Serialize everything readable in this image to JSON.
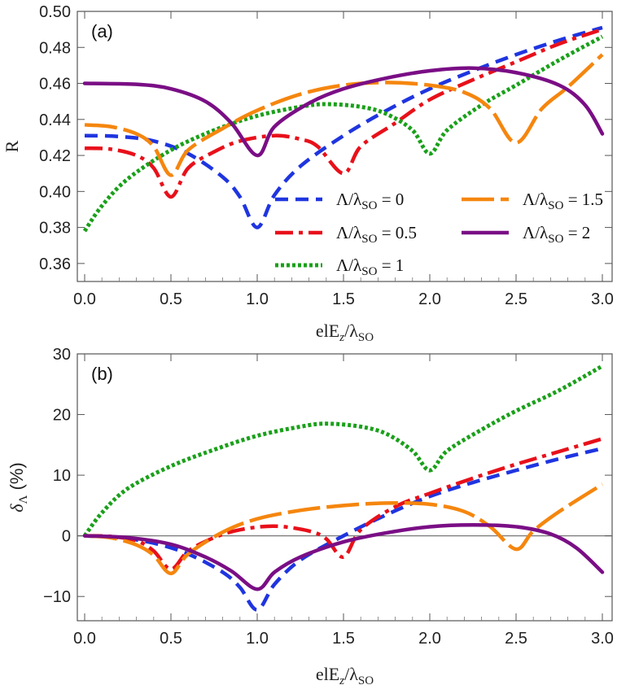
{
  "chart_data": [
    {
      "type": "line",
      "panel_label": "(a)",
      "xlabel": "elE",
      "xlabel_sub1": "z",
      "xlabel_mid": "/λ",
      "xlabel_sub2": "SO",
      "ylabel": "R",
      "xlim": [
        0,
        3
      ],
      "ylim": [
        0.35,
        0.5
      ],
      "xticks": [
        0.0,
        0.5,
        1.0,
        1.5,
        2.0,
        2.5,
        3.0
      ],
      "xtick_labels": [
        "0.0",
        "0.5",
        "1.0",
        "1.5",
        "2.0",
        "2.5",
        "3.0"
      ],
      "yticks": [
        0.36,
        0.38,
        0.4,
        0.42,
        0.44,
        0.46,
        0.48,
        0.5
      ],
      "ytick_labels": [
        "0.36",
        "0.38",
        "0.40",
        "0.42",
        "0.44",
        "0.46",
        "0.48",
        "0.50"
      ],
      "grid": false,
      "legend_position": "bottom-right",
      "series": [
        {
          "name": "Λ/λSO = 0",
          "label_main": "Λ/λ",
          "label_sub": "SO",
          "label_val": " = 0",
          "color": "#1f35e0",
          "dash": "16 9",
          "points": [
            [
              0.0,
              0.431
            ],
            [
              0.2,
              0.4305
            ],
            [
              0.4,
              0.428
            ],
            [
              0.6,
              0.421
            ],
            [
              0.8,
              0.408
            ],
            [
              0.9,
              0.397
            ],
            [
              1.0,
              0.38
            ],
            [
              1.1,
              0.398
            ],
            [
              1.25,
              0.414
            ],
            [
              1.5,
              0.431
            ],
            [
              1.75,
              0.445
            ],
            [
              2.0,
              0.457
            ],
            [
              2.25,
              0.467
            ],
            [
              2.5,
              0.476
            ],
            [
              2.75,
              0.484
            ],
            [
              3.0,
              0.491
            ]
          ]
        },
        {
          "name": "Λ/λSO = 0.5",
          "label_main": "Λ/λ",
          "label_sub": "SO",
          "label_val": " = 0.5",
          "color": "#e8101a",
          "dash": "22 7 5 7",
          "points": [
            [
              0.0,
              0.424
            ],
            [
              0.15,
              0.4235
            ],
            [
              0.3,
              0.42
            ],
            [
              0.4,
              0.413
            ],
            [
              0.5,
              0.397
            ],
            [
              0.6,
              0.413
            ],
            [
              0.75,
              0.422
            ],
            [
              0.9,
              0.428
            ],
            [
              1.1,
              0.431
            ],
            [
              1.25,
              0.429
            ],
            [
              1.35,
              0.425
            ],
            [
              1.5,
              0.41
            ],
            [
              1.6,
              0.425
            ],
            [
              1.8,
              0.438
            ],
            [
              2.0,
              0.451
            ],
            [
              2.25,
              0.462
            ],
            [
              2.5,
              0.472
            ],
            [
              2.75,
              0.482
            ],
            [
              3.0,
              0.49
            ]
          ]
        },
        {
          "name": "Λ/λSO = 1",
          "label_main": "Λ/λ",
          "label_sub": "SO",
          "label_val": " = 1",
          "color": "#1aa01a",
          "dash": "4 3",
          "points": [
            [
              0.0,
              0.378
            ],
            [
              0.1,
              0.392
            ],
            [
              0.25,
              0.407
            ],
            [
              0.5,
              0.423
            ],
            [
              0.75,
              0.434
            ],
            [
              1.0,
              0.442
            ],
            [
              1.25,
              0.447
            ],
            [
              1.4,
              0.4485
            ],
            [
              1.6,
              0.447
            ],
            [
              1.75,
              0.443
            ],
            [
              1.9,
              0.434
            ],
            [
              2.0,
              0.421
            ],
            [
              2.1,
              0.434
            ],
            [
              2.3,
              0.448
            ],
            [
              2.5,
              0.459
            ],
            [
              2.75,
              0.473
            ],
            [
              3.0,
              0.486
            ]
          ]
        },
        {
          "name": "Λ/λSO = 1.5",
          "label_main": "Λ/λ",
          "label_sub": "SO",
          "label_val": " = 1.5",
          "color": "#f5860e",
          "dash": "40 8",
          "points": [
            [
              0.0,
              0.437
            ],
            [
              0.15,
              0.436
            ],
            [
              0.3,
              0.432
            ],
            [
              0.4,
              0.425
            ],
            [
              0.5,
              0.409
            ],
            [
              0.6,
              0.423
            ],
            [
              0.8,
              0.435
            ],
            [
              1.0,
              0.445
            ],
            [
              1.25,
              0.454
            ],
            [
              1.5,
              0.459
            ],
            [
              1.75,
              0.4605
            ],
            [
              2.0,
              0.459
            ],
            [
              2.2,
              0.455
            ],
            [
              2.35,
              0.446
            ],
            [
              2.5,
              0.427
            ],
            [
              2.65,
              0.446
            ],
            [
              2.8,
              0.458
            ],
            [
              3.0,
              0.476
            ]
          ]
        },
        {
          "name": "Λ/λSO = 2",
          "label_main": "Λ/λ",
          "label_sub": "SO",
          "label_val": " = 2",
          "color": "#7a0e85",
          "dash": "",
          "points": [
            [
              0.0,
              0.46
            ],
            [
              0.3,
              0.4595
            ],
            [
              0.5,
              0.457
            ],
            [
              0.7,
              0.45
            ],
            [
              0.85,
              0.438
            ],
            [
              1.0,
              0.42
            ],
            [
              1.1,
              0.436
            ],
            [
              1.3,
              0.449
            ],
            [
              1.5,
              0.457
            ],
            [
              1.75,
              0.463
            ],
            [
              2.0,
              0.467
            ],
            [
              2.25,
              0.4685
            ],
            [
              2.5,
              0.466
            ],
            [
              2.75,
              0.459
            ],
            [
              2.9,
              0.448
            ],
            [
              3.0,
              0.432
            ]
          ]
        }
      ]
    },
    {
      "type": "line",
      "panel_label": "(b)",
      "xlabel": "elE",
      "xlabel_sub1": "z",
      "xlabel_mid": "/λ",
      "xlabel_sub2": "SO",
      "ylabel": "δ",
      "ylabel_sub": "Λ",
      "ylabel_rest": " (%)",
      "xlim": [
        0,
        3
      ],
      "ylim": [
        -14,
        30
      ],
      "xticks": [
        0.0,
        0.5,
        1.0,
        1.5,
        2.0,
        2.5,
        3.0
      ],
      "xtick_labels": [
        "0.0",
        "0.5",
        "1.0",
        "1.5",
        "2.0",
        "2.5",
        "3.0"
      ],
      "yticks": [
        -10,
        0,
        10,
        20,
        30
      ],
      "ytick_labels": [
        "−10",
        "0",
        "10",
        "20",
        "30"
      ],
      "zero_line": true,
      "grid": false,
      "series": [
        {
          "name": "Λ/λSO = 0",
          "color": "#1f35e0",
          "dash": "16 9",
          "points": [
            [
              0.0,
              0.0
            ],
            [
              0.2,
              -0.3
            ],
            [
              0.4,
              -1.2
            ],
            [
              0.6,
              -3.0
            ],
            [
              0.8,
              -6.0
            ],
            [
              0.9,
              -8.5
            ],
            [
              1.0,
              -12.2
            ],
            [
              1.1,
              -8.0
            ],
            [
              1.25,
              -4.0
            ],
            [
              1.5,
              0.0
            ],
            [
              1.75,
              3.5
            ],
            [
              2.0,
              6.5
            ],
            [
              2.25,
              8.8
            ],
            [
              2.5,
              10.8
            ],
            [
              2.75,
              12.7
            ],
            [
              3.0,
              14.4
            ]
          ]
        },
        {
          "name": "Λ/λSO = 0.5",
          "color": "#e8101a",
          "dash": "22 7 5 7",
          "points": [
            [
              0.0,
              0.0
            ],
            [
              0.15,
              -0.1
            ],
            [
              0.3,
              -0.8
            ],
            [
              0.4,
              -2.5
            ],
            [
              0.5,
              -5.5
            ],
            [
              0.6,
              -2.5
            ],
            [
              0.75,
              -0.3
            ],
            [
              0.9,
              1.0
            ],
            [
              1.1,
              1.6
            ],
            [
              1.3,
              0.8
            ],
            [
              1.4,
              -0.5
            ],
            [
              1.5,
              -3.5
            ],
            [
              1.6,
              1.0
            ],
            [
              1.8,
              4.8
            ],
            [
              2.0,
              7.0
            ],
            [
              2.25,
              9.5
            ],
            [
              2.5,
              11.8
            ],
            [
              2.75,
              13.9
            ],
            [
              3.0,
              16.0
            ]
          ]
        },
        {
          "name": "Λ/λSO = 1",
          "color": "#1aa01a",
          "dash": "4 3",
          "points": [
            [
              0.0,
              0.0
            ],
            [
              0.1,
              3.8
            ],
            [
              0.25,
              7.8
            ],
            [
              0.5,
              11.5
            ],
            [
              0.75,
              14.2
            ],
            [
              1.0,
              16.5
            ],
            [
              1.25,
              18.0
            ],
            [
              1.4,
              18.5
            ],
            [
              1.6,
              18.0
            ],
            [
              1.75,
              16.8
            ],
            [
              1.9,
              14.0
            ],
            [
              2.0,
              10.8
            ],
            [
              2.1,
              14.0
            ],
            [
              2.3,
              17.5
            ],
            [
              2.5,
              20.6
            ],
            [
              2.75,
              24.0
            ],
            [
              3.0,
              28.0
            ]
          ]
        },
        {
          "name": "Λ/λSO = 1.5",
          "color": "#f5860e",
          "dash": "40 8",
          "points": [
            [
              0.0,
              0.0
            ],
            [
              0.15,
              -0.3
            ],
            [
              0.3,
              -1.5
            ],
            [
              0.4,
              -3.2
            ],
            [
              0.5,
              -6.2
            ],
            [
              0.6,
              -3.0
            ],
            [
              0.8,
              0.6
            ],
            [
              1.0,
              2.8
            ],
            [
              1.25,
              4.2
            ],
            [
              1.5,
              5.0
            ],
            [
              1.75,
              5.4
            ],
            [
              2.0,
              5.2
            ],
            [
              2.2,
              4.0
            ],
            [
              2.35,
              1.5
            ],
            [
              2.5,
              -2.2
            ],
            [
              2.6,
              0.8
            ],
            [
              2.75,
              4.0
            ],
            [
              3.0,
              8.5
            ]
          ]
        },
        {
          "name": "Λ/λSO = 2",
          "color": "#7a0e85",
          "dash": "",
          "points": [
            [
              0.0,
              0.0
            ],
            [
              0.25,
              -0.3
            ],
            [
              0.5,
              -1.4
            ],
            [
              0.7,
              -3.5
            ],
            [
              0.85,
              -5.8
            ],
            [
              1.0,
              -8.8
            ],
            [
              1.1,
              -6.0
            ],
            [
              1.25,
              -3.5
            ],
            [
              1.5,
              -1.0
            ],
            [
              1.75,
              0.5
            ],
            [
              2.0,
              1.5
            ],
            [
              2.25,
              1.8
            ],
            [
              2.5,
              1.5
            ],
            [
              2.7,
              0.3
            ],
            [
              2.85,
              -2.0
            ],
            [
              3.0,
              -6.0
            ]
          ]
        }
      ]
    }
  ]
}
